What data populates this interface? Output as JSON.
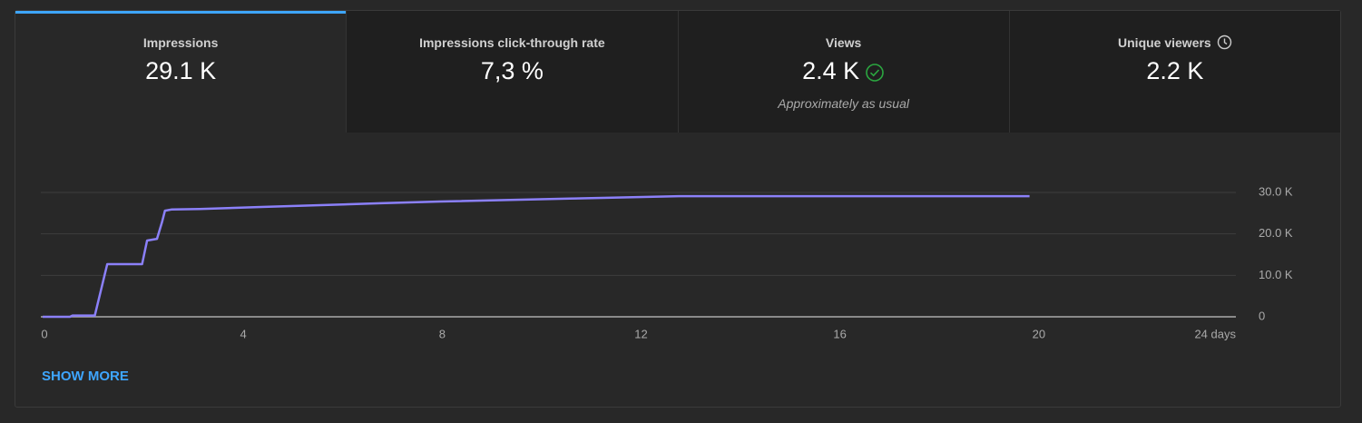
{
  "tabs": [
    {
      "label": "Impressions",
      "value": "29.1 K"
    },
    {
      "label": "Impressions click-through rate",
      "value": "7,3 %"
    },
    {
      "label": "Views",
      "value": "2.4 K",
      "note": "Approximately as usual"
    },
    {
      "label": "Unique viewers",
      "value": "2.2 K"
    }
  ],
  "chart_data": {
    "type": "line",
    "color": "#8b80f9",
    "x": [
      0,
      0.55,
      0.6,
      1.05,
      1.3,
      2.0,
      2.1,
      2.3,
      2.4,
      2.46,
      2.6,
      3.16,
      4.4,
      6.8,
      8.0,
      10.6,
      12.8,
      19.85
    ],
    "values": [
      0,
      0,
      300,
      300,
      12700,
      12700,
      18400,
      18800,
      22800,
      25600,
      25900,
      26000,
      26500,
      27400,
      27800,
      28500,
      29100,
      29100
    ],
    "xlim": [
      0,
      24
    ],
    "xticks": [
      0,
      4,
      8,
      12,
      16,
      20,
      {
        "value": 24,
        "label": "24 days"
      }
    ],
    "ylim": [
      0,
      30000
    ],
    "yticks": [
      {
        "value": 0,
        "label": "0"
      },
      {
        "value": 10000,
        "label": "10.0 K"
      },
      {
        "value": 20000,
        "label": "20.0 K"
      },
      {
        "value": 30000,
        "label": "30.0 K"
      }
    ],
    "grid": true
  },
  "footer": {
    "link": "SHOW MORE"
  }
}
